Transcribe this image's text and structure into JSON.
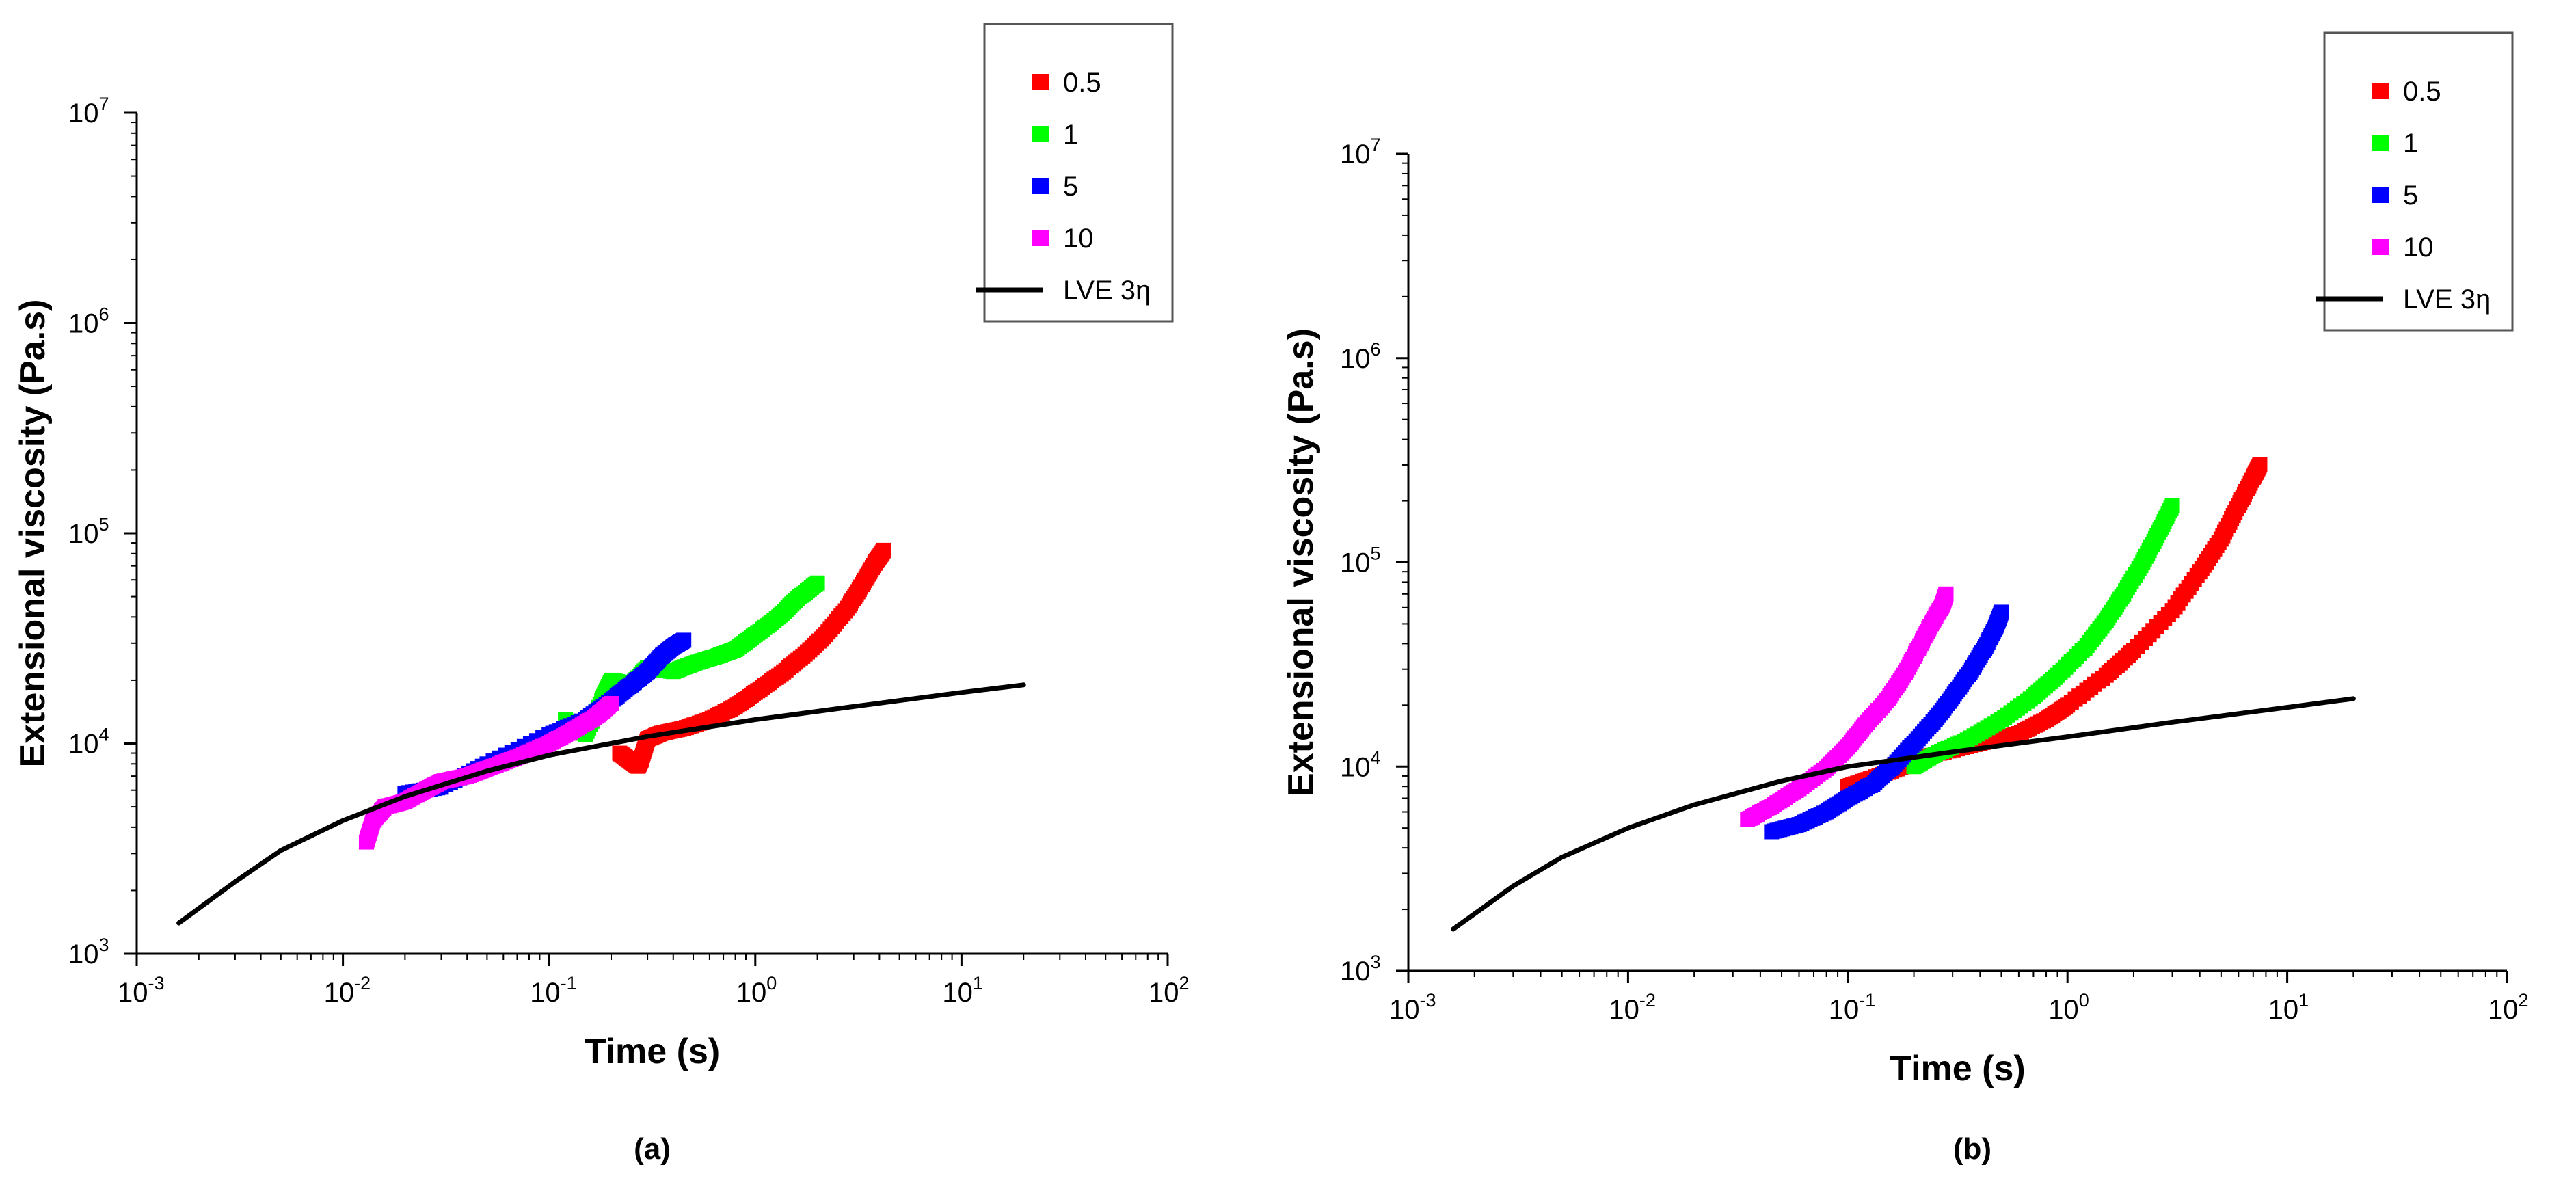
{
  "chart_data": [
    {
      "panel_label": "(a)",
      "type": "scatter",
      "xscale": "log",
      "yscale": "log",
      "xlim": [
        0.001,
        100
      ],
      "ylim": [
        1000,
        10000000
      ],
      "x_tick_labels": [
        {
          "base": "10",
          "exp": "-3"
        },
        {
          "base": "10",
          "exp": "-2"
        },
        {
          "base": "10",
          "exp": "-1"
        },
        {
          "base": "10",
          "exp": "0"
        },
        {
          "base": "10",
          "exp": "1"
        },
        {
          "base": "10",
          "exp": "2"
        }
      ],
      "y_tick_labels": [
        {
          "base": "10",
          "exp": "3"
        },
        {
          "base": "10",
          "exp": "4"
        },
        {
          "base": "10",
          "exp": "5"
        },
        {
          "base": "10",
          "exp": "6"
        },
        {
          "base": "10",
          "exp": "7"
        }
      ],
      "xlabel": "Time (s)",
      "ylabel": "Extensional viscosity (Pa.s)",
      "legend_position": "top-right",
      "series": [
        {
          "name": "0.5",
          "kind": "markers",
          "color": "#ff0000",
          "points": [
            [
              0.22,
              9000
            ],
            [
              0.25,
              8200
            ],
            [
              0.27,
              7800
            ],
            [
              0.28,
              8400
            ],
            [
              0.3,
              10500
            ],
            [
              0.35,
              11200
            ],
            [
              0.45,
              11800
            ],
            [
              0.6,
              13000
            ],
            [
              0.8,
              15000
            ],
            [
              1.0,
              17500
            ],
            [
              1.3,
              21000
            ],
            [
              1.7,
              26000
            ],
            [
              2.2,
              33000
            ],
            [
              2.8,
              44000
            ],
            [
              3.3,
              57000
            ],
            [
              3.8,
              72000
            ],
            [
              4.2,
              83000
            ]
          ]
        },
        {
          "name": "1",
          "kind": "markers",
          "color": "#00ff00",
          "points": [
            [
              0.12,
              13000
            ],
            [
              0.15,
              11000
            ],
            [
              0.18,
              16000
            ],
            [
              0.2,
              20000
            ],
            [
              0.25,
              19000
            ],
            [
              0.3,
              23000
            ],
            [
              0.4,
              22000
            ],
            [
              0.5,
              24000
            ],
            [
              0.65,
              26000
            ],
            [
              0.8,
              28000
            ],
            [
              1.0,
              33000
            ],
            [
              1.3,
              40000
            ],
            [
              1.6,
              49000
            ],
            [
              2.0,
              58000
            ]
          ]
        },
        {
          "name": "5",
          "kind": "markers",
          "color": "#0000ff",
          "points": [
            [
              0.02,
              5800
            ],
            [
              0.03,
              6200
            ],
            [
              0.05,
              8000
            ],
            [
              0.1,
              11000
            ],
            [
              0.15,
              13000
            ],
            [
              0.2,
              16000
            ],
            [
              0.25,
              19000
            ],
            [
              0.3,
              22000
            ],
            [
              0.35,
              26000
            ],
            [
              0.4,
              29000
            ],
            [
              0.45,
              31000
            ]
          ]
        },
        {
          "name": "10",
          "kind": "markers",
          "color": "#ff00ff",
          "points": [
            [
              0.013,
              3400
            ],
            [
              0.014,
              4300
            ],
            [
              0.016,
              5000
            ],
            [
              0.02,
              5300
            ],
            [
              0.025,
              6000
            ],
            [
              0.03,
              6600
            ],
            [
              0.04,
              7000
            ],
            [
              0.05,
              7600
            ],
            [
              0.07,
              8600
            ],
            [
              0.1,
              10000
            ],
            [
              0.13,
              11500
            ],
            [
              0.17,
              13500
            ],
            [
              0.2,
              15500
            ]
          ]
        },
        {
          "name": "LVE 3η",
          "kind": "line",
          "color": "#000000",
          "points": [
            [
              0.0016,
              1400
            ],
            [
              0.003,
              2200
            ],
            [
              0.005,
              3100
            ],
            [
              0.01,
              4300
            ],
            [
              0.02,
              5600
            ],
            [
              0.05,
              7400
            ],
            [
              0.1,
              8800
            ],
            [
              0.3,
              10800
            ],
            [
              1,
              13000
            ],
            [
              3,
              15000
            ],
            [
              10,
              17500
            ],
            [
              20,
              19000
            ]
          ]
        }
      ]
    },
    {
      "panel_label": "(b)",
      "type": "scatter",
      "xscale": "log",
      "yscale": "log",
      "xlim": [
        0.001,
        100
      ],
      "ylim": [
        1000,
        10000000
      ],
      "x_tick_labels": [
        {
          "base": "10",
          "exp": "-3"
        },
        {
          "base": "10",
          "exp": "-2"
        },
        {
          "base": "10",
          "exp": "-1"
        },
        {
          "base": "10",
          "exp": "0"
        },
        {
          "base": "10",
          "exp": "1"
        },
        {
          "base": "10",
          "exp": "2"
        }
      ],
      "y_tick_labels": [
        {
          "base": "10",
          "exp": "3"
        },
        {
          "base": "10",
          "exp": "4"
        },
        {
          "base": "10",
          "exp": "5"
        },
        {
          "base": "10",
          "exp": "6"
        },
        {
          "base": "10",
          "exp": "7"
        }
      ],
      "xlabel": "Time (s)",
      "ylabel": "Extensional viscosity (Pa.s)",
      "legend_position": "top-right",
      "series": [
        {
          "name": "0.5",
          "kind": "markers",
          "color": "#ff0000",
          "points": [
            [
              0.1,
              8000
            ],
            [
              0.13,
              8800
            ],
            [
              0.18,
              10000
            ],
            [
              0.25,
              11500
            ],
            [
              0.4,
              13000
            ],
            [
              0.6,
              14500
            ],
            [
              0.8,
              17000
            ],
            [
              1.0,
              20000
            ],
            [
              1.5,
              28000
            ],
            [
              2.0,
              37000
            ],
            [
              3.0,
              58000
            ],
            [
              4.0,
              90000
            ],
            [
              5.0,
              130000
            ],
            [
              6.0,
              190000
            ],
            [
              7.0,
              260000
            ],
            [
              7.5,
              300000
            ]
          ]
        },
        {
          "name": "1",
          "kind": "markers",
          "color": "#00ff00",
          "points": [
            [
              0.2,
              10000
            ],
            [
              0.25,
              11500
            ],
            [
              0.35,
              13500
            ],
            [
              0.5,
              17000
            ],
            [
              0.7,
              22000
            ],
            [
              0.9,
              28000
            ],
            [
              1.2,
              38000
            ],
            [
              1.5,
              52000
            ],
            [
              1.8,
              70000
            ],
            [
              2.2,
              100000
            ],
            [
              2.6,
              140000
            ],
            [
              3.0,
              190000
            ]
          ]
        },
        {
          "name": "5",
          "kind": "markers",
          "color": "#0000ff",
          "points": [
            [
              0.045,
              4800
            ],
            [
              0.06,
              5200
            ],
            [
              0.08,
              6000
            ],
            [
              0.1,
              7000
            ],
            [
              0.13,
              8200
            ],
            [
              0.16,
              10000
            ],
            [
              0.2,
              13000
            ],
            [
              0.25,
              17000
            ],
            [
              0.3,
              22000
            ],
            [
              0.36,
              29000
            ],
            [
              0.42,
              38000
            ],
            [
              0.47,
              48000
            ],
            [
              0.5,
              57000
            ]
          ]
        },
        {
          "name": "10",
          "kind": "markers",
          "color": "#ff00ff",
          "points": [
            [
              0.035,
              5500
            ],
            [
              0.045,
              6400
            ],
            [
              0.06,
              7800
            ],
            [
              0.08,
              9800
            ],
            [
              0.1,
              12500
            ],
            [
              0.12,
              16000
            ],
            [
              0.15,
              21000
            ],
            [
              0.18,
              28000
            ],
            [
              0.21,
              38000
            ],
            [
              0.24,
              50000
            ],
            [
              0.27,
              62000
            ],
            [
              0.28,
              70000
            ]
          ]
        },
        {
          "name": "LVE 3η",
          "kind": "line",
          "color": "#000000",
          "points": [
            [
              0.0016,
              1600
            ],
            [
              0.003,
              2600
            ],
            [
              0.005,
              3600
            ],
            [
              0.01,
              5000
            ],
            [
              0.02,
              6500
            ],
            [
              0.05,
              8500
            ],
            [
              0.1,
              10000
            ],
            [
              0.3,
              11800
            ],
            [
              1,
              14000
            ],
            [
              3,
              16500
            ],
            [
              10,
              19500
            ],
            [
              20,
              21500
            ]
          ]
        }
      ]
    }
  ]
}
